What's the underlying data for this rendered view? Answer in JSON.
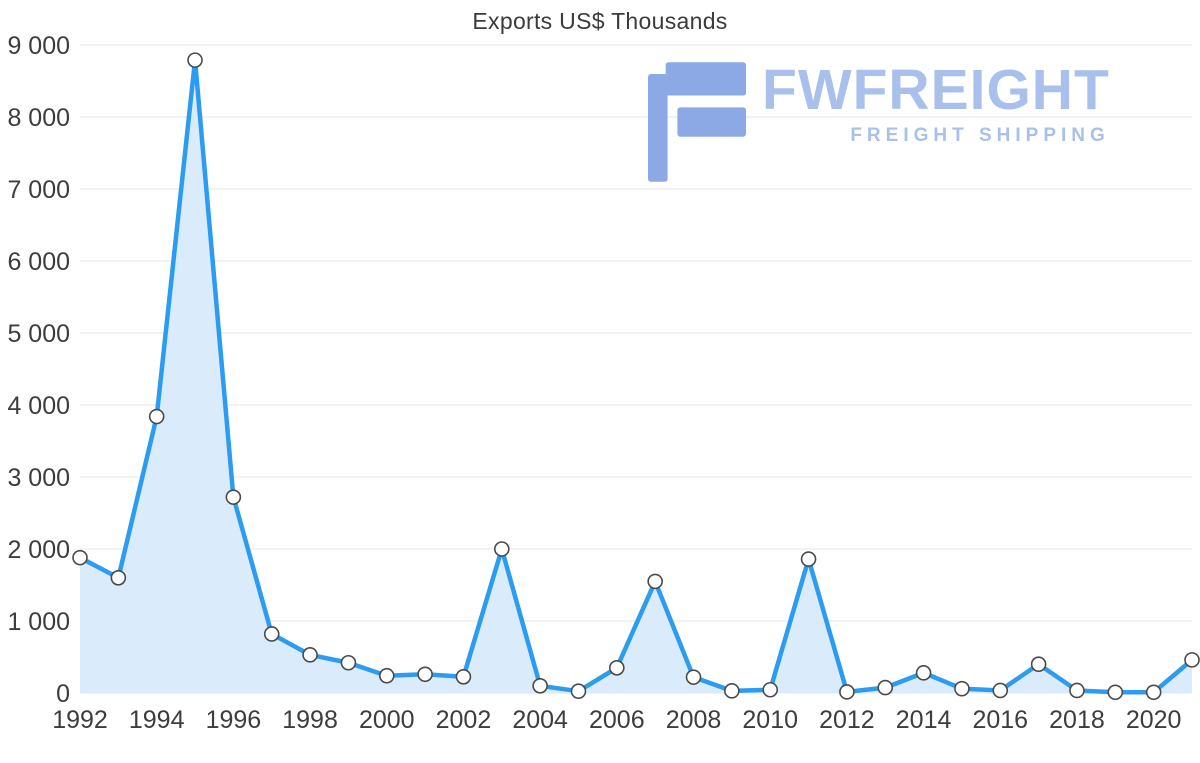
{
  "chart_data": {
    "type": "area",
    "title": "Exports US$ Thousands",
    "xlabel": "",
    "ylabel": "",
    "legend": "none",
    "grid": "horizontal",
    "ylim": [
      0,
      9000
    ],
    "x": [
      1992,
      1993,
      1994,
      1995,
      1996,
      1997,
      1998,
      1999,
      2000,
      2001,
      2002,
      2003,
      2004,
      2005,
      2006,
      2007,
      2008,
      2009,
      2010,
      2011,
      2012,
      2013,
      2014,
      2015,
      2016,
      2017,
      2018,
      2019,
      2020,
      2021
    ],
    "values": [
      1880,
      1600,
      3840,
      8790,
      2720,
      820,
      530,
      420,
      240,
      260,
      225,
      2000,
      100,
      25,
      350,
      1550,
      220,
      30,
      45,
      1860,
      15,
      75,
      280,
      60,
      35,
      400,
      35,
      10,
      10,
      460
    ],
    "x_ticks": [
      1992,
      1994,
      1996,
      1998,
      2000,
      2002,
      2004,
      2006,
      2008,
      2010,
      2012,
      2014,
      2016,
      2018,
      2020
    ],
    "y_ticks": [
      {
        "value": 0,
        "label": "0"
      },
      {
        "value": 1000,
        "label": "1 000"
      },
      {
        "value": 2000,
        "label": "2 000"
      },
      {
        "value": 3000,
        "label": "3 000"
      },
      {
        "value": 4000,
        "label": "4 000"
      },
      {
        "value": 5000,
        "label": "5 000"
      },
      {
        "value": 6000,
        "label": "6 000"
      },
      {
        "value": 7000,
        "label": "7 000"
      },
      {
        "value": 8000,
        "label": "8 000"
      },
      {
        "value": 9000,
        "label": "9 000"
      }
    ],
    "colors": {
      "line": "#2b9cf2",
      "area": "#daecfc",
      "grid": "#e4e4e4",
      "axis_text": "#3d3d3d",
      "marker_fill": "#ffffff",
      "marker_stroke": "#4a4a4a"
    }
  },
  "watermark": {
    "brand": "FWFREIGHT",
    "tagline": "FREIGHT SHIPPING",
    "glyph": "fwfreight-logo-icon",
    "color": "#a9c0ec",
    "glyph_color": "#8ca9e6"
  }
}
